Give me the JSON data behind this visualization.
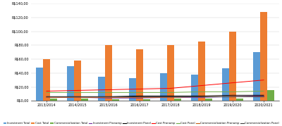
{
  "years": [
    "2013/2014",
    "2014/2015",
    "2015/2016",
    "2016/2017",
    "2017/2018",
    "2018/2019",
    "2019/2020",
    "2020/2021"
  ],
  "investment_total": [
    48,
    50,
    35,
    33,
    40,
    38,
    47,
    70
  ],
  "cost_total": [
    60,
    58,
    80,
    74,
    80,
    86,
    100,
    128
  ],
  "commercialization_total": [
    3,
    3,
    2,
    2,
    3,
    3,
    3,
    15
  ],
  "investment_pronamp": [
    5,
    5,
    4,
    4,
    5,
    5,
    6,
    7
  ],
  "investment_panel": [
    6,
    6,
    6,
    7,
    7,
    7,
    8,
    8
  ],
  "cost_pronamp": [
    14,
    15,
    16,
    17,
    18,
    22,
    26,
    30
  ],
  "cost_panel": [
    12,
    12,
    12,
    12,
    12,
    13,
    13,
    14
  ],
  "commercialization_pronamp": [
    5,
    5,
    5,
    5,
    5,
    6,
    6,
    6
  ],
  "commercialization_panel": [
    6,
    6,
    6,
    6,
    6,
    6,
    6,
    6
  ],
  "bar_investment_color": "#5b9bd5",
  "bar_cost_color": "#ed7d31",
  "bar_comm_color": "#70ad47",
  "line_inv_pronamp_color": "#7030a0",
  "line_inv_panel_color": "#000000",
  "line_cost_pronamp_color": "#ff0000",
  "line_cost_panel_color": "#70ad47",
  "line_comm_pronamp_color": "#c55a11",
  "line_comm_panel_color": "#404040",
  "ylim": [
    0,
    140
  ],
  "yticks": [
    0,
    20,
    40,
    60,
    80,
    100,
    120,
    140
  ],
  "ytick_labels": [
    "R$0,00",
    "R$20,00",
    "R$40,00",
    "R$60,00",
    "R$80,00",
    "R$100,00",
    "R$120,00",
    "R$140,00"
  ],
  "legend_labels": [
    "Investment Total",
    "Cost Total",
    "Commercialization Total",
    "Investment Pronamp",
    "Investment Panel",
    "Cost Pronamp",
    "Cost Panel",
    "Commercialization Pronamp",
    "Commercialization Panel"
  ],
  "fig_width": 4.0,
  "fig_height": 1.79,
  "dpi": 100
}
